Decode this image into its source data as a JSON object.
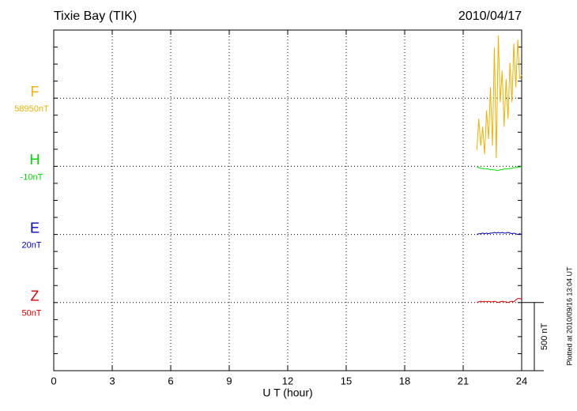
{
  "chart_data": {
    "type": "line",
    "title": "Tixie Bay (TIK)",
    "date": "2010/04/17",
    "xlabel": "U T (hour)",
    "footnote": "Plotted at 2010/09/16 13:04 UT",
    "xlim": [
      0,
      24
    ],
    "xticks": [
      0,
      3,
      6,
      9,
      12,
      15,
      18,
      21,
      24
    ],
    "grid": true,
    "scale_bar": {
      "value": 500,
      "label": "500 nT"
    },
    "x": [
      21.7,
      21.8,
      21.9,
      22.0,
      22.1,
      22.2,
      22.3,
      22.4,
      22.5,
      22.6,
      22.7,
      22.8,
      22.9,
      23.0,
      23.1,
      23.2,
      23.3,
      23.4,
      23.5,
      23.6,
      23.7,
      23.8,
      23.9,
      24.0
    ],
    "series": [
      {
        "name": "F",
        "base_label": "58950nT",
        "color": "#f0b000",
        "values": [
          -380,
          -150,
          -350,
          -210,
          -410,
          -90,
          -300,
          80,
          -350,
          370,
          -440,
          460,
          -30,
          200,
          -210,
          140,
          -150,
          260,
          -30,
          400,
          80,
          430,
          140,
          170
        ]
      },
      {
        "name": "H",
        "base_label": "-10nT",
        "color": "#00dd00",
        "values": [
          -5,
          -10,
          -15,
          -15,
          -20,
          -20,
          -20,
          -25,
          -25,
          -25,
          -30,
          -30,
          -25,
          -25,
          -20,
          -20,
          -20,
          -15,
          -15,
          -10,
          -10,
          -5,
          -5,
          0
        ]
      },
      {
        "name": "E",
        "base_label": "20nT",
        "color": "#0000c0",
        "values": [
          0,
          5,
          5,
          10,
          5,
          10,
          5,
          10,
          10,
          15,
          10,
          15,
          10,
          15,
          10,
          10,
          15,
          10,
          5,
          10,
          5,
          0,
          5,
          0
        ]
      },
      {
        "name": "Z",
        "base_label": "50nT",
        "color": "#e00000",
        "values": [
          0,
          5,
          10,
          5,
          10,
          5,
          10,
          5,
          5,
          10,
          5,
          0,
          5,
          10,
          5,
          5,
          0,
          5,
          10,
          5,
          20,
          30,
          30,
          25
        ]
      }
    ]
  }
}
